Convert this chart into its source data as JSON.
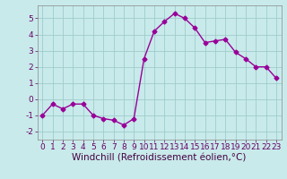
{
  "x": [
    0,
    1,
    2,
    3,
    4,
    5,
    6,
    7,
    8,
    9,
    10,
    11,
    12,
    13,
    14,
    15,
    16,
    17,
    18,
    19,
    20,
    21,
    22,
    23
  ],
  "y": [
    -1.0,
    -0.3,
    -0.6,
    -0.3,
    -0.3,
    -1.0,
    -1.2,
    -1.3,
    -1.6,
    -1.2,
    2.5,
    4.2,
    4.8,
    5.3,
    5.0,
    4.4,
    3.5,
    3.6,
    3.7,
    2.9,
    2.5,
    2.0,
    2.0,
    1.3
  ],
  "line_color": "#990099",
  "marker": "D",
  "markersize": 2.5,
  "linewidth": 1.0,
  "xlabel": "Windchill (Refroidissement éolien,°C)",
  "xlim": [
    -0.5,
    23.5
  ],
  "ylim": [
    -2.5,
    5.8
  ],
  "yticks": [
    -2,
    -1,
    0,
    1,
    2,
    3,
    4,
    5
  ],
  "xticks": [
    0,
    1,
    2,
    3,
    4,
    5,
    6,
    7,
    8,
    9,
    10,
    11,
    12,
    13,
    14,
    15,
    16,
    17,
    18,
    19,
    20,
    21,
    22,
    23
  ],
  "grid_color": "#a0cccc",
  "bg_color": "#c8eaea",
  "tick_fontsize": 6.5,
  "xlabel_fontsize": 7.5
}
